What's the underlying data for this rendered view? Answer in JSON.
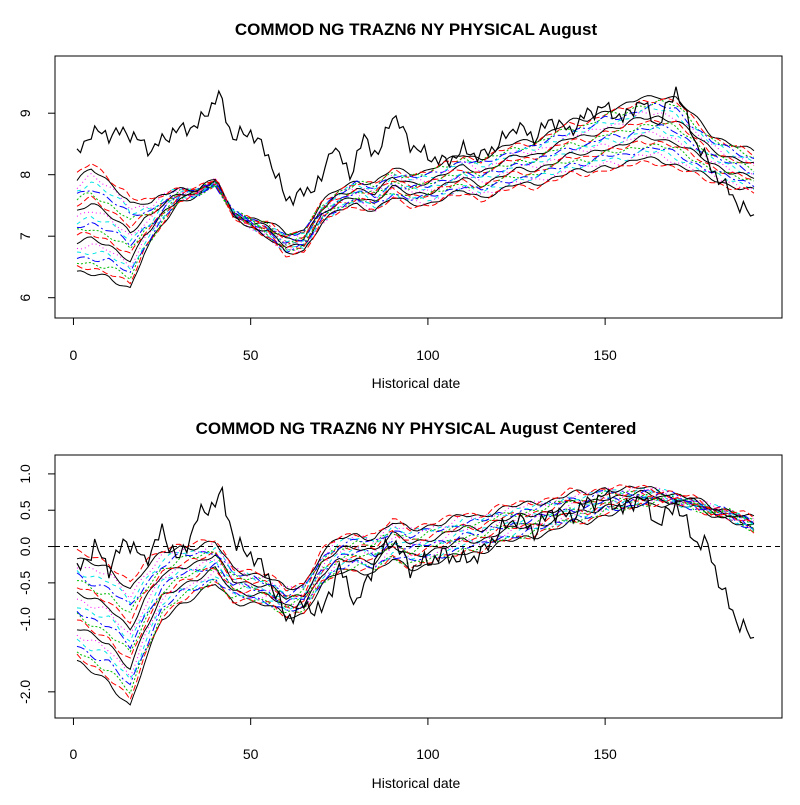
{
  "palette": [
    "#000000",
    "#ff0000",
    "#00bb00",
    "#0000ff",
    "#00e5e5",
    "#ff00ff"
  ],
  "chart_data": [
    {
      "type": "line",
      "title": "COMMOD NG TRAZN6 NY PHYSICAL August",
      "xlabel": "Historical date",
      "ylabel": "",
      "xlim": [
        1,
        192
      ],
      "ylim": [
        5.8,
        9.8
      ],
      "xticks": [
        "0",
        "50",
        "100",
        "150"
      ],
      "yticks": [
        "6",
        "7",
        "8",
        "9"
      ],
      "grid": false,
      "legend": "none",
      "spot_anchors": [
        [
          1,
          8.3
        ],
        [
          5,
          8.7
        ],
        [
          10,
          8.65
        ],
        [
          15,
          8.7
        ],
        [
          22,
          8.4
        ],
        [
          28,
          8.7
        ],
        [
          35,
          8.8
        ],
        [
          41,
          9.3
        ],
        [
          45,
          8.6
        ],
        [
          50,
          8.7
        ],
        [
          55,
          8.3
        ],
        [
          60,
          7.6
        ],
        [
          65,
          7.7
        ],
        [
          70,
          7.9
        ],
        [
          73,
          8.5
        ],
        [
          78,
          8.0
        ],
        [
          82,
          8.6
        ],
        [
          86,
          8.3
        ],
        [
          90,
          9.0
        ],
        [
          95,
          8.5
        ],
        [
          100,
          8.3
        ],
        [
          105,
          8.2
        ],
        [
          110,
          8.4
        ],
        [
          115,
          8.3
        ],
        [
          120,
          8.5
        ],
        [
          125,
          8.8
        ],
        [
          130,
          8.6
        ],
        [
          135,
          8.9
        ],
        [
          140,
          8.7
        ],
        [
          145,
          9.0
        ],
        [
          150,
          9.1
        ],
        [
          155,
          8.9
        ],
        [
          160,
          9.2
        ],
        [
          165,
          8.8
        ],
        [
          170,
          9.4
        ],
        [
          175,
          8.6
        ],
        [
          180,
          8.1
        ],
        [
          184,
          7.8
        ],
        [
          188,
          7.5
        ],
        [
          192,
          7.3
        ]
      ],
      "base_anchors": [
        [
          1,
          6.4
        ],
        [
          5,
          6.3
        ],
        [
          10,
          6.2
        ],
        [
          16,
          5.9
        ],
        [
          20,
          6.4
        ],
        [
          25,
          6.8
        ],
        [
          30,
          7.1
        ],
        [
          35,
          7.2
        ],
        [
          40,
          7.4
        ],
        [
          45,
          7.0
        ],
        [
          50,
          6.9
        ],
        [
          55,
          6.85
        ],
        [
          60,
          6.7
        ],
        [
          65,
          6.75
        ],
        [
          70,
          7.2
        ],
        [
          75,
          7.4
        ],
        [
          80,
          7.5
        ],
        [
          85,
          7.4
        ],
        [
          90,
          7.6
        ],
        [
          95,
          7.5
        ],
        [
          100,
          7.5
        ],
        [
          105,
          7.6
        ],
        [
          110,
          7.7
        ],
        [
          115,
          7.6
        ],
        [
          120,
          7.7
        ],
        [
          125,
          7.8
        ],
        [
          130,
          7.8
        ],
        [
          135,
          7.9
        ],
        [
          140,
          8.0
        ],
        [
          145,
          8.0
        ],
        [
          150,
          8.1
        ],
        [
          155,
          8.1
        ],
        [
          160,
          8.2
        ],
        [
          165,
          8.2
        ],
        [
          170,
          8.1
        ],
        [
          175,
          8.0
        ],
        [
          180,
          7.9
        ],
        [
          185,
          7.8
        ],
        [
          192,
          7.7
        ]
      ],
      "spread_anchors": [
        [
          1,
          0.0
        ],
        [
          30,
          0.05
        ],
        [
          50,
          0.04
        ],
        [
          70,
          0.035
        ],
        [
          100,
          0.06
        ],
        [
          130,
          0.08
        ],
        [
          150,
          0.1
        ],
        [
          170,
          0.12
        ],
        [
          180,
          0.08
        ],
        [
          192,
          0.07
        ]
      ],
      "curve_count": 20
    },
    {
      "type": "line",
      "title": "COMMOD NG TRAZN6 NY PHYSICAL August Centered",
      "xlabel": "Historical date",
      "ylabel": "",
      "xlim": [
        1,
        192
      ],
      "ylim": [
        -2.25,
        1.15
      ],
      "xticks": [
        "0",
        "50",
        "100",
        "150"
      ],
      "yticks": [
        "-2.0",
        "-1.0",
        "-0.5",
        "0.0",
        "0.5",
        "1.0"
      ],
      "ytick_values": [
        -2.0,
        -1.0,
        -0.5,
        0.0,
        0.5,
        1.0
      ],
      "zero_line": 0.0,
      "grid": false,
      "legend": "none",
      "spot_anchors": [
        [
          1,
          -0.35
        ],
        [
          6,
          0.0
        ],
        [
          10,
          -0.3
        ],
        [
          15,
          0.1
        ],
        [
          20,
          -0.2
        ],
        [
          25,
          0.2
        ],
        [
          30,
          -0.2
        ],
        [
          35,
          0.4
        ],
        [
          42,
          0.7
        ],
        [
          46,
          0.0
        ],
        [
          50,
          -0.1
        ],
        [
          55,
          -0.4
        ],
        [
          60,
          -1.0
        ],
        [
          65,
          -0.8
        ],
        [
          70,
          -0.9
        ],
        [
          75,
          -0.3
        ],
        [
          80,
          -0.8
        ],
        [
          85,
          -0.2
        ],
        [
          90,
          0.1
        ],
        [
          95,
          -0.3
        ],
        [
          100,
          -0.2
        ],
        [
          105,
          -0.1
        ],
        [
          110,
          -0.2
        ],
        [
          115,
          -0.1
        ],
        [
          120,
          0.2
        ],
        [
          125,
          0.4
        ],
        [
          130,
          0.2
        ],
        [
          135,
          0.5
        ],
        [
          140,
          0.4
        ],
        [
          145,
          0.6
        ],
        [
          150,
          0.7
        ],
        [
          155,
          0.5
        ],
        [
          160,
          0.7
        ],
        [
          165,
          0.3
        ],
        [
          170,
          0.6
        ],
        [
          175,
          0.1
        ],
        [
          179,
          0.0
        ],
        [
          183,
          -0.6
        ],
        [
          187,
          -1.0
        ],
        [
          192,
          -1.3
        ]
      ],
      "base_anchors": [
        [
          1,
          -0.8
        ],
        [
          5,
          -0.9
        ],
        [
          10,
          -1.0
        ],
        [
          16,
          -1.3
        ],
        [
          20,
          -0.9
        ],
        [
          25,
          -0.5
        ],
        [
          30,
          -0.35
        ],
        [
          35,
          -0.3
        ],
        [
          40,
          -0.2
        ],
        [
          45,
          -0.5
        ],
        [
          50,
          -0.55
        ],
        [
          55,
          -0.6
        ],
        [
          60,
          -0.75
        ],
        [
          65,
          -0.7
        ],
        [
          70,
          -0.3
        ],
        [
          75,
          -0.1
        ],
        [
          80,
          -0.05
        ],
        [
          85,
          -0.1
        ],
        [
          90,
          0.1
        ],
        [
          95,
          0.0
        ],
        [
          100,
          0.05
        ],
        [
          105,
          0.1
        ],
        [
          110,
          0.2
        ],
        [
          115,
          0.2
        ],
        [
          120,
          0.3
        ],
        [
          125,
          0.35
        ],
        [
          130,
          0.4
        ],
        [
          135,
          0.45
        ],
        [
          140,
          0.55
        ],
        [
          145,
          0.55
        ],
        [
          150,
          0.65
        ],
        [
          155,
          0.65
        ],
        [
          160,
          0.7
        ],
        [
          165,
          0.7
        ],
        [
          170,
          0.65
        ],
        [
          175,
          0.6
        ],
        [
          180,
          0.5
        ],
        [
          185,
          0.45
        ],
        [
          192,
          0.3
        ]
      ],
      "spread_anchors": [
        [
          1,
          0.08
        ],
        [
          16,
          0.09
        ],
        [
          25,
          0.05
        ],
        [
          45,
          0.025
        ],
        [
          60,
          0.02
        ],
        [
          70,
          0.025
        ],
        [
          100,
          0.03
        ],
        [
          130,
          0.025
        ],
        [
          150,
          0.02
        ],
        [
          165,
          0.01
        ],
        [
          180,
          0.005
        ],
        [
          192,
          0.01
        ]
      ],
      "curve_count": 20
    }
  ]
}
